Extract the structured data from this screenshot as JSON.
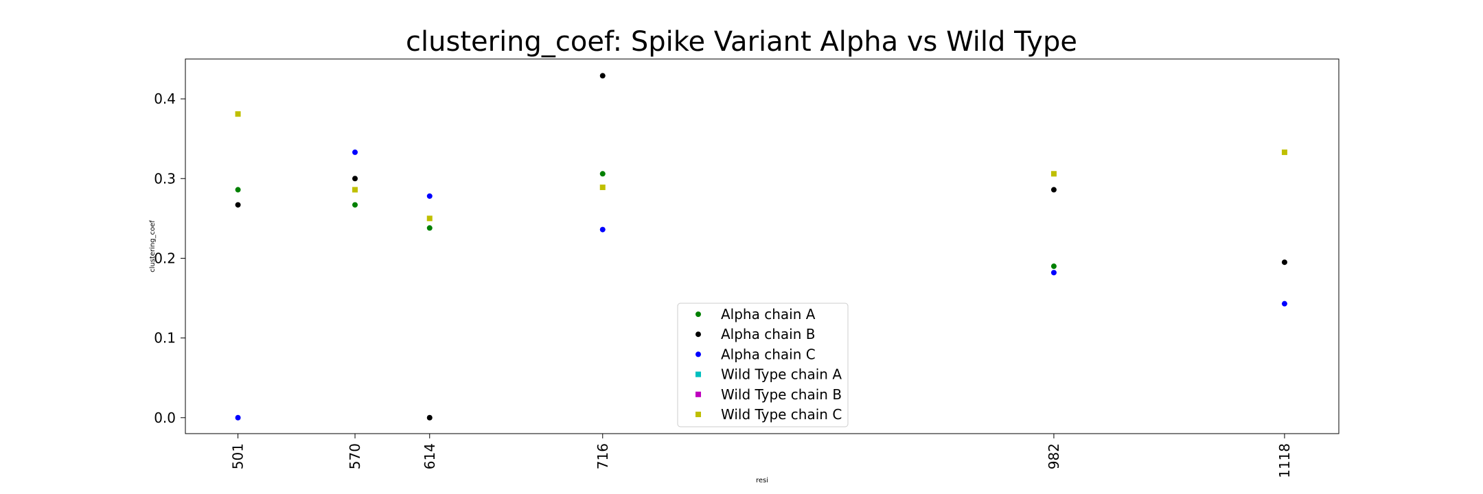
{
  "chart_data": {
    "type": "scatter",
    "title": "clustering_coef: Spike Variant Alpha vs Wild Type",
    "xlabel": "resi",
    "ylabel": "clustering_coef",
    "x_ticks": [
      501,
      570,
      614,
      716,
      982,
      1118
    ],
    "x_tick_labels": [
      "501",
      "570",
      "614",
      "716",
      "982",
      "1118"
    ],
    "xlim": [
      470,
      1150
    ],
    "ylim": [
      -0.02,
      0.45
    ],
    "y_ticks": [
      0.0,
      0.1,
      0.2,
      0.3,
      0.4
    ],
    "y_tick_labels": [
      "0.0",
      "0.1",
      "0.2",
      "0.3",
      "0.4"
    ],
    "grid": false,
    "legend_position": "lower-center",
    "series": [
      {
        "name": "Alpha chain A",
        "color": "#008000",
        "marker": "circle",
        "points": [
          [
            501,
            0.286
          ],
          [
            570,
            0.267
          ],
          [
            614,
            0.238
          ],
          [
            716,
            0.306
          ],
          [
            982,
            0.19
          ]
        ]
      },
      {
        "name": "Alpha chain B",
        "color": "#000000",
        "marker": "circle",
        "points": [
          [
            501,
            0.267
          ],
          [
            570,
            0.3
          ],
          [
            614,
            0.0
          ],
          [
            716,
            0.429
          ],
          [
            982,
            0.286
          ],
          [
            1118,
            0.195
          ]
        ]
      },
      {
        "name": "Alpha chain C",
        "color": "#0000ff",
        "marker": "circle",
        "points": [
          [
            501,
            0.0
          ],
          [
            570,
            0.333
          ],
          [
            614,
            0.278
          ],
          [
            716,
            0.236
          ],
          [
            982,
            0.182
          ],
          [
            1118,
            0.143
          ]
        ]
      },
      {
        "name": "Wild Type chain A",
        "color": "#00bfbf",
        "marker": "square",
        "points": []
      },
      {
        "name": "Wild Type chain B",
        "color": "#bf00bf",
        "marker": "square",
        "points": []
      },
      {
        "name": "Wild Type chain C",
        "color": "#bfbf00",
        "marker": "square",
        "points": [
          [
            501,
            0.381
          ],
          [
            570,
            0.286
          ],
          [
            614,
            0.25
          ],
          [
            716,
            0.289
          ],
          [
            982,
            0.306
          ],
          [
            1118,
            0.333
          ]
        ]
      }
    ]
  }
}
